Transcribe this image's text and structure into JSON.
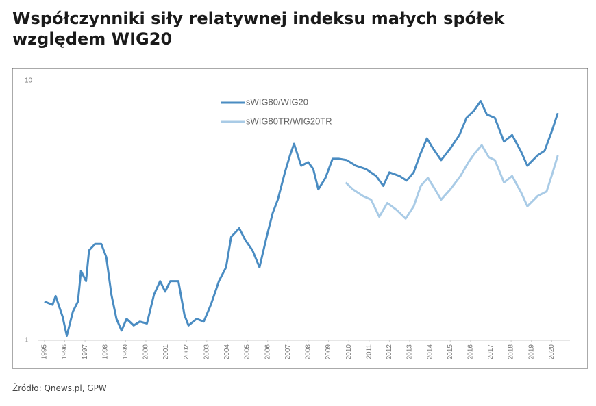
{
  "chart_data": {
    "type": "line",
    "title": "Współczynniki siły relatywnej indeksu małych spółek względem WIG20",
    "source": "Źródło: Qnews.pl, GPW",
    "yscale": "log",
    "legend": "upper center",
    "xlim": [
      1994.7,
      2020.9
    ],
    "ylim": [
      1,
      10.8
    ],
    "xticks": [
      1995,
      1996,
      1997,
      1998,
      1999,
      2000,
      2001,
      2002,
      2003,
      2004,
      2005,
      2006,
      2007,
      2008,
      2009,
      2010,
      2011,
      2012,
      2013,
      2014,
      2015,
      2016,
      2017,
      2018,
      2019,
      2020
    ],
    "yticks": [
      1,
      10
    ],
    "series": [
      {
        "name": "sWIG80/WIG20",
        "color": "#4a8cc2",
        "x": [
          1995.0,
          1995.4,
          1995.55,
          1995.9,
          1996.1,
          1996.4,
          1996.65,
          1996.8,
          1997.05,
          1997.2,
          1997.5,
          1997.8,
          1998.05,
          1998.3,
          1998.55,
          1998.8,
          1999.05,
          1999.4,
          1999.7,
          2000.05,
          2000.4,
          2000.7,
          2000.95,
          2001.2,
          2001.6,
          2001.9,
          2002.1,
          2002.5,
          2002.85,
          2003.2,
          2003.6,
          2003.95,
          2004.2,
          2004.6,
          2004.9,
          2005.25,
          2005.6,
          2005.95,
          2006.25,
          2006.5,
          2006.85,
          2007.1,
          2007.3,
          2007.65,
          2008.0,
          2008.25,
          2008.5,
          2008.85,
          2009.2,
          2009.5,
          2009.9,
          2010.35,
          2010.85,
          2011.35,
          2011.7,
          2012.0,
          2012.5,
          2012.85,
          2013.2,
          2013.5,
          2013.85,
          2014.15,
          2014.55,
          2015.0,
          2015.45,
          2015.8,
          2016.15,
          2016.5,
          2016.8,
          2017.2,
          2017.65,
          2018.05,
          2018.5,
          2018.8,
          2019.3,
          2019.65,
          2020.0,
          2020.3
        ],
        "values": [
          1.41,
          1.37,
          1.48,
          1.23,
          1.04,
          1.29,
          1.41,
          1.85,
          1.69,
          2.22,
          2.35,
          2.35,
          2.09,
          1.5,
          1.21,
          1.09,
          1.21,
          1.14,
          1.18,
          1.16,
          1.5,
          1.69,
          1.54,
          1.69,
          1.69,
          1.25,
          1.14,
          1.21,
          1.18,
          1.37,
          1.69,
          1.91,
          2.5,
          2.7,
          2.43,
          2.22,
          1.91,
          2.5,
          3.09,
          3.48,
          4.43,
          5.15,
          5.71,
          4.7,
          4.85,
          4.56,
          3.81,
          4.22,
          5.0,
          5.0,
          4.94,
          4.7,
          4.56,
          4.29,
          3.93,
          4.43,
          4.29,
          4.12,
          4.43,
          5.15,
          5.99,
          5.48,
          4.94,
          5.48,
          6.17,
          7.18,
          7.63,
          8.34,
          7.4,
          7.18,
          5.82,
          6.17,
          5.31,
          4.7,
          5.15,
          5.37,
          6.36,
          7.49
        ]
      },
      {
        "name": "sWIG80TR/WIG20TR",
        "color": "#a9cbe6",
        "x": [
          2009.85,
          2010.2,
          2010.7,
          2011.1,
          2011.5,
          2011.9,
          2012.35,
          2012.8,
          2013.2,
          2013.55,
          2013.9,
          2014.25,
          2014.55,
          2015.0,
          2015.5,
          2015.9,
          2016.2,
          2016.55,
          2016.9,
          2017.2,
          2017.65,
          2018.05,
          2018.5,
          2018.8,
          2019.3,
          2019.75,
          2020.05,
          2020.3
        ],
        "values": [
          4.05,
          3.81,
          3.59,
          3.48,
          2.99,
          3.38,
          3.18,
          2.94,
          3.28,
          3.93,
          4.22,
          3.81,
          3.48,
          3.81,
          4.29,
          4.85,
          5.24,
          5.64,
          5.07,
          4.94,
          4.05,
          4.29,
          3.7,
          3.28,
          3.59,
          3.74,
          4.43,
          5.15
        ]
      }
    ]
  }
}
